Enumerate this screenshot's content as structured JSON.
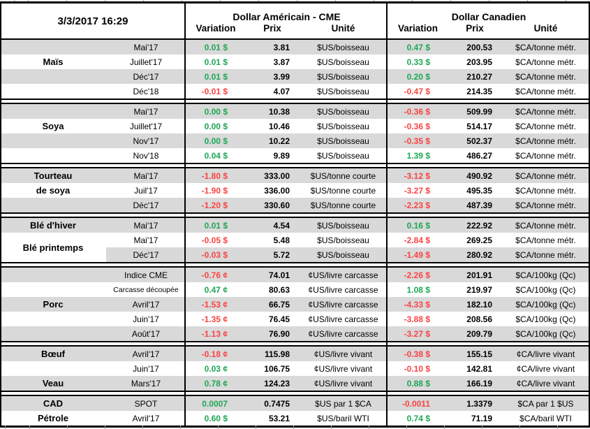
{
  "meta": {
    "timestamp": "3/3/2017 16:29"
  },
  "header": {
    "us_title": "Dollar Américain - CME",
    "ca_title": "Dollar Canadien",
    "col_variation": "Variation",
    "col_prix": "Prix",
    "col_unite": "Unité"
  },
  "colors": {
    "positive": "#1ea756",
    "negative": "#fb4343",
    "band": "#d9d9d9"
  },
  "sections": [
    {
      "key": "mais",
      "rows": [
        {
          "month": "Mai'17",
          "us_var": "0.01 $",
          "us_prix": "3.81",
          "us_unit": "$US/boisseau",
          "ca_var": "0.47 $",
          "ca_prix": "200.53",
          "ca_unit": "$CA/tonne métr."
        },
        {
          "label": "Maïs",
          "month": "Juillet'17",
          "us_var": "0.01 $",
          "us_prix": "3.87",
          "us_unit": "$US/boisseau",
          "ca_var": "0.33 $",
          "ca_prix": "203.95",
          "ca_unit": "$CA/tonne métr."
        },
        {
          "month": "Déc'17",
          "us_var": "0.01 $",
          "us_prix": "3.99",
          "us_unit": "$US/boisseau",
          "ca_var": "0.20 $",
          "ca_prix": "210.27",
          "ca_unit": "$CA/tonne métr."
        },
        {
          "month": "Déc'18",
          "us_var": "-0.01 $",
          "us_prix": "4.07",
          "us_unit": "$US/boisseau",
          "ca_var": "-0.47 $",
          "ca_prix": "214.35",
          "ca_unit": "$CA/tonne métr."
        }
      ]
    },
    {
      "key": "soya",
      "rows": [
        {
          "month": "Mai'17",
          "us_var": "0.00 $",
          "us_prix": "10.38",
          "us_unit": "$US/boisseau",
          "ca_var": "-0.36 $",
          "ca_prix": "509.99",
          "ca_unit": "$CA/tonne métr."
        },
        {
          "label": "Soya",
          "month": "Juillet'17",
          "us_var": "0.00 $",
          "us_prix": "10.46",
          "us_unit": "$US/boisseau",
          "ca_var": "-0.36 $",
          "ca_prix": "514.17",
          "ca_unit": "$CA/tonne métr."
        },
        {
          "month": "Nov'17",
          "us_var": "0.00 $",
          "us_prix": "10.22",
          "us_unit": "$US/boisseau",
          "ca_var": "-0.35 $",
          "ca_prix": "502.37",
          "ca_unit": "$CA/tonne métr."
        },
        {
          "month": "Nov'18",
          "us_var": "0.04 $",
          "us_prix": "9.89",
          "us_unit": "$US/boisseau",
          "ca_var": "1.39 $",
          "ca_prix": "486.27",
          "ca_unit": "$CA/tonne métr."
        }
      ]
    },
    {
      "key": "tourteau-de-soya",
      "rows": [
        {
          "label": "Tourteau",
          "month": "Mai'17",
          "us_var": "-1.80 $",
          "us_prix": "333.00",
          "us_unit": "$US/tonne courte",
          "ca_var": "-3.12 $",
          "ca_prix": "490.92",
          "ca_unit": "$CA/tonne métr."
        },
        {
          "label": "de soya",
          "month": "Juil'17",
          "us_var": "-1.90 $",
          "us_prix": "336.00",
          "us_unit": "$US/tonne courte",
          "ca_var": "-3.27 $",
          "ca_prix": "495.35",
          "ca_unit": "$CA/tonne métr."
        },
        {
          "month": "Déc'17",
          "us_var": "-1.20 $",
          "us_prix": "330.60",
          "us_unit": "$US/tonne courte",
          "ca_var": "-2.23 $",
          "ca_prix": "487.39",
          "ca_unit": "$CA/tonne métr."
        }
      ]
    },
    {
      "key": "ble",
      "rows": [
        {
          "label": "Blé d'hiver",
          "month": "Mai'17",
          "us_var": "0.01 $",
          "us_prix": "4.54",
          "us_unit": "$US/boisseau",
          "ca_var": "0.16 $",
          "ca_prix": "222.92",
          "ca_unit": "$CA/tonne métr."
        },
        {
          "label": "Blé printemps",
          "label_span": 2,
          "label_white": true,
          "month": "Mai'17",
          "us_var": "-0.05 $",
          "us_prix": "5.48",
          "us_unit": "$US/boisseau",
          "ca_var": "-2.84 $",
          "ca_prix": "269.25",
          "ca_unit": "$CA/tonne métr."
        },
        {
          "month": "Déc'17",
          "us_var": "-0.03 $",
          "us_prix": "5.72",
          "us_unit": "$US/boisseau",
          "ca_var": "-1.49 $",
          "ca_prix": "280.92",
          "ca_unit": "$CA/tonne métr."
        }
      ]
    },
    {
      "key": "porc",
      "rows": [
        {
          "month": "Indice CME",
          "us_var": "-0.76 ¢",
          "us_prix": "74.01",
          "us_unit": "¢US/livre carcasse",
          "ca_var": "-2.26 $",
          "ca_prix": "201.91",
          "ca_unit": "$CA/100kg (Qc)"
        },
        {
          "month": "Carcasse découpée",
          "month_small": true,
          "us_var": "0.47 ¢",
          "us_prix": "80.63",
          "us_unit": "¢US/livre carcasse",
          "ca_var": "1.08 $",
          "ca_prix": "219.97",
          "ca_unit": "$CA/100kg (Qc)"
        },
        {
          "label": "Porc",
          "month": "Avril'17",
          "us_var": "-1.53 ¢",
          "us_prix": "66.75",
          "us_unit": "¢US/livre carcasse",
          "ca_var": "-4.33 $",
          "ca_prix": "182.10",
          "ca_unit": "$CA/100kg (Qc)"
        },
        {
          "month": "Juin'17",
          "us_var": "-1.35 ¢",
          "us_prix": "76.45",
          "us_unit": "¢US/livre carcasse",
          "ca_var": "-3.88 $",
          "ca_prix": "208.56",
          "ca_unit": "$CA/100kg (Qc)"
        },
        {
          "month": "Août'17",
          "us_var": "-1.13 ¢",
          "us_prix": "76.90",
          "us_unit": "¢US/livre carcasse",
          "ca_var": "-3.27 $",
          "ca_prix": "209.79",
          "ca_unit": "$CA/100kg (Qc)"
        }
      ]
    },
    {
      "key": "boeuf-veau",
      "rows": [
        {
          "label": "Bœuf",
          "month": "Avril'17",
          "us_var": "-0.18 ¢",
          "us_prix": "115.98",
          "us_unit": "¢US/livre vivant",
          "ca_var": "-0.38 $",
          "ca_prix": "155.15",
          "ca_unit": "¢CA/livre vivant"
        },
        {
          "month": "Juin'17",
          "us_var": "0.03 ¢",
          "us_prix": "106.75",
          "us_unit": "¢US/livre vivant",
          "ca_var": "-0.10 $",
          "ca_prix": "142.81",
          "ca_unit": "¢CA/livre vivant"
        },
        {
          "label": "Veau",
          "month": "Mars'17",
          "us_var": "0.78 ¢",
          "us_prix": "124.23",
          "us_unit": "¢US/livre vivant",
          "ca_var": "0.88 $",
          "ca_prix": "166.19",
          "ca_unit": "¢CA/livre vivant"
        }
      ]
    },
    {
      "key": "cad-petrole",
      "rows": [
        {
          "label": "CAD",
          "month": "SPOT",
          "us_var": "0.0007",
          "us_prix": "0.7475",
          "us_unit": "$US par 1 $CA",
          "ca_var": "-0.0011",
          "ca_prix": "1.3379",
          "ca_unit": "$CA par 1 $US"
        },
        {
          "label": "Pétrole",
          "month": "Avril'17",
          "us_var": "0.60 $",
          "us_prix": "53.21",
          "us_unit": "$US/baril WTI",
          "ca_var": "0.74 $",
          "ca_prix": "71.19",
          "ca_unit": "$CA/baril WTI"
        }
      ]
    }
  ]
}
